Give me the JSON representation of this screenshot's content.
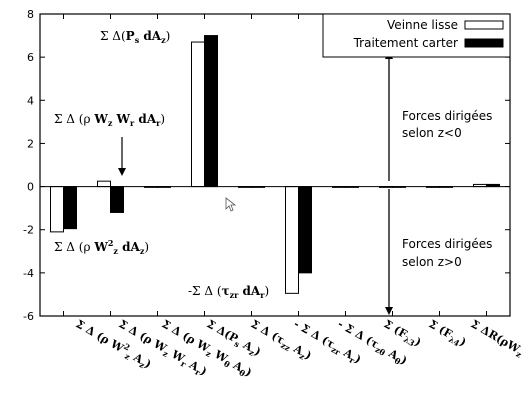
{
  "chart_data": {
    "type": "bar",
    "ylim": [
      -6,
      8
    ],
    "yticks": [
      -6,
      -4,
      -2,
      0,
      2,
      4,
      6,
      8
    ],
    "grid": false,
    "legend_position": "top-right",
    "categories": [
      "Σ Δ (ρ W²z Az)",
      "Σ Δ (ρ Wz Wr Ar)",
      "Σ Δ (ρ Wz Wθ Aθ)",
      "Σ Δ(Ps Az)",
      "Σ Δ (τzz Az)",
      "-Σ Δ (τzr Ar)",
      "-Σ Δ (τzθ Aθ)",
      "Σ (Fλ3)",
      "Σ (Fλ4)",
      "Σ ΔR(ρWz"
    ],
    "series": [
      {
        "name": "Veinne lisse",
        "fill": "#ffffff",
        "stroke": "#000000",
        "values": [
          -2.1,
          0.25,
          0.0,
          6.7,
          0.0,
          -4.95,
          0.0,
          0.0,
          0.0,
          0.1
        ]
      },
      {
        "name": "Traitement carter",
        "fill": "#000000",
        "stroke": "#000000",
        "values": [
          -1.95,
          -1.2,
          0.0,
          7.0,
          0.0,
          -4.0,
          0.0,
          0.0,
          0.0,
          0.1
        ]
      }
    ],
    "annotations": [
      {
        "id": "psaz",
        "text": "Σ Δ(Ps dAz)"
      },
      {
        "id": "wzwr",
        "text": "Σ Δ (ρ Wz Wr dAr)"
      },
      {
        "id": "wz2",
        "text": "Σ Δ (ρ W²z dAz)"
      },
      {
        "id": "tzr",
        "text": "-Σ Δ (τzr dAr)"
      }
    ],
    "side_texts": {
      "upper": [
        "Forces dirigées",
        "selon z<0"
      ],
      "lower": [
        "Forces dirigées",
        "selon z>0"
      ]
    }
  }
}
